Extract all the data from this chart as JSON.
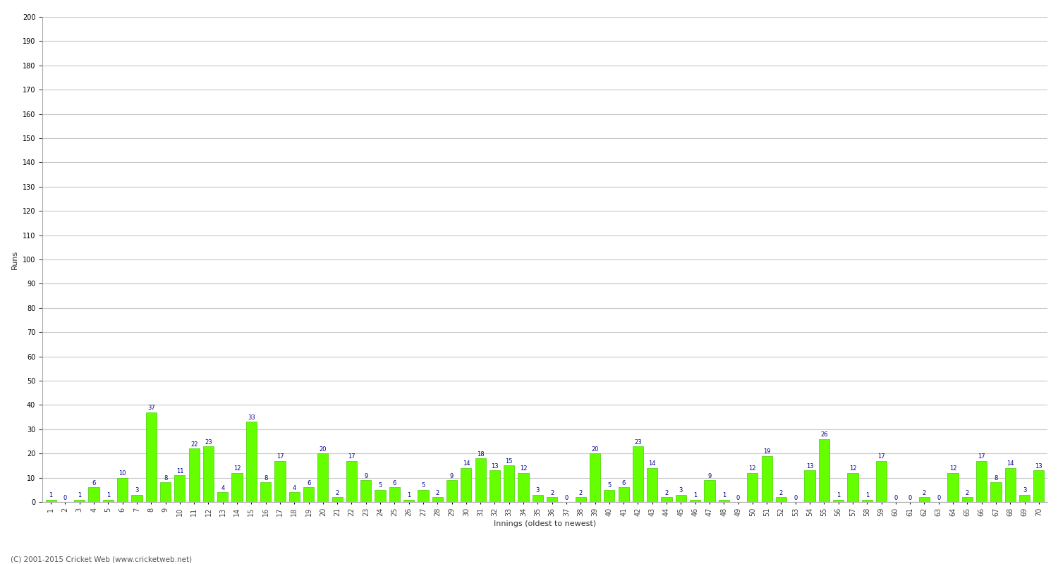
{
  "xlabel": "Innings (oldest to newest)",
  "ylabel": "Runs",
  "ylim": [
    0,
    200
  ],
  "yticks": [
    0,
    10,
    20,
    30,
    40,
    50,
    60,
    70,
    80,
    90,
    100,
    110,
    120,
    130,
    140,
    150,
    160,
    170,
    180,
    190,
    200
  ],
  "bar_color": "#66ff00",
  "bar_edge_color": "#44cc00",
  "label_color": "#00008B",
  "background_color": "#ffffff",
  "grid_color": "#c8c8c8",
  "innings": [
    1,
    2,
    3,
    4,
    5,
    6,
    7,
    8,
    9,
    10,
    11,
    12,
    13,
    14,
    15,
    16,
    17,
    18,
    19,
    20,
    21,
    22,
    23,
    24,
    25,
    26,
    27,
    28,
    29,
    30,
    31,
    32,
    33,
    34,
    35,
    36,
    37,
    38,
    39,
    40,
    41,
    42,
    43,
    44,
    45,
    46,
    47,
    48,
    49,
    50,
    51,
    52,
    53,
    54,
    55,
    56,
    57,
    58,
    59,
    60,
    61,
    62,
    63,
    64,
    65,
    66,
    67,
    68,
    69,
    70
  ],
  "values": [
    1,
    0,
    1,
    6,
    1,
    10,
    3,
    37,
    8,
    11,
    22,
    23,
    4,
    12,
    33,
    8,
    17,
    4,
    6,
    20,
    2,
    17,
    9,
    5,
    6,
    1,
    5,
    2,
    9,
    14,
    18,
    13,
    15,
    12,
    3,
    2,
    0,
    2,
    20,
    5,
    6,
    23,
    14,
    2,
    3,
    1,
    9,
    1,
    0,
    12,
    19,
    2,
    0,
    13,
    26,
    1,
    12,
    1,
    17,
    0,
    0,
    2,
    0,
    12,
    2,
    17,
    8,
    14,
    3,
    13
  ],
  "label_fontsize": 6.0,
  "tick_fontsize": 7,
  "axis_label_fontsize": 8,
  "footer_text": "(C) 2001-2015 Cricket Web (www.cricketweb.net)",
  "footer_fontsize": 7.5
}
